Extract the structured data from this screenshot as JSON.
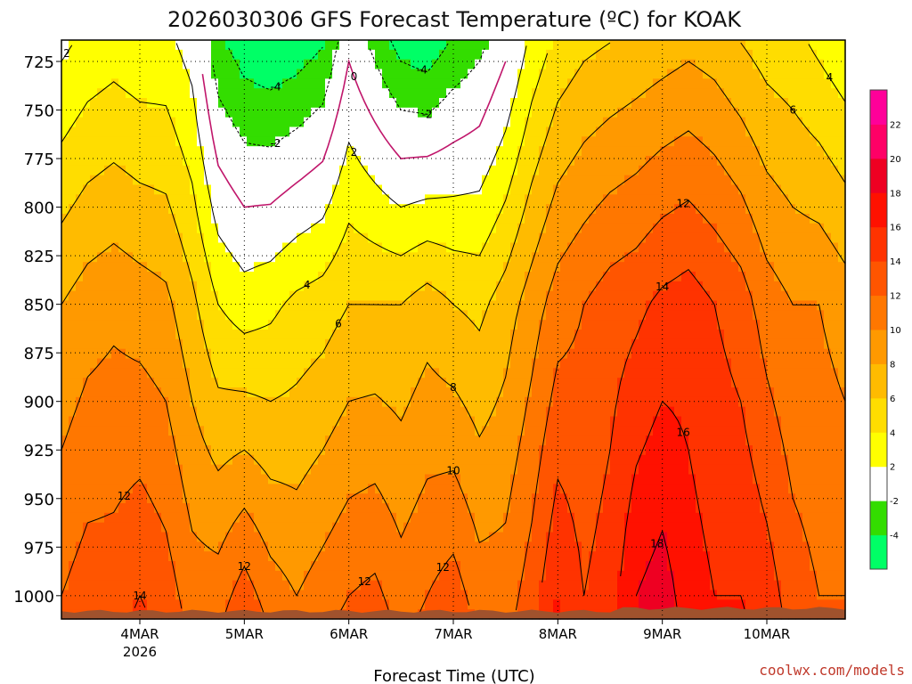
{
  "chart_data": {
    "type": "heatmap",
    "title": "2026030306 GFS Forecast Temperature (ºC) for KOAK",
    "xlabel": "Forecast Time (UTC)",
    "ylabel": "",
    "credit": "coolwx.com/models",
    "y_ticks": [
      725,
      750,
      775,
      800,
      825,
      850,
      875,
      900,
      925,
      950,
      975,
      1000
    ],
    "ylim": [
      1012,
      714
    ],
    "x_ticks": [
      {
        "day": 4,
        "label": "4MAR",
        "sublabel": "2026"
      },
      {
        "day": 5,
        "label": "5MAR",
        "sublabel": ""
      },
      {
        "day": 6,
        "label": "6MAR",
        "sublabel": ""
      },
      {
        "day": 7,
        "label": "7MAR",
        "sublabel": ""
      },
      {
        "day": 8,
        "label": "8MAR",
        "sublabel": ""
      },
      {
        "day": 9,
        "label": "9MAR",
        "sublabel": ""
      },
      {
        "day": 10,
        "label": "10MAR",
        "sublabel": ""
      }
    ],
    "xlim": [
      3.25,
      10.75
    ],
    "grid": true,
    "colorbar": {
      "levels": [
        -4,
        -2,
        2,
        4,
        6,
        8,
        10,
        12,
        14,
        16,
        18,
        20,
        22
      ],
      "colors": [
        "#00ff66",
        "#33dd00",
        "#ffffff",
        "#ffff00",
        "#ffdd00",
        "#ffbb00",
        "#ff9900",
        "#ff7700",
        "#ff5500",
        "#ff3300",
        "#ff1100",
        "#ee0022",
        "#ff0066",
        "#ff0099"
      ]
    },
    "series": [
      {
        "x": 3.25,
        "t725": 2,
        "t850": 8,
        "t1000": 12
      },
      {
        "x": 3.5,
        "t725": 3,
        "t850": 9,
        "t1000": 13
      },
      {
        "x": 3.75,
        "t725": 3.5,
        "t850": 9.5,
        "t1000": 13
      },
      {
        "x": 4.0,
        "t725": 3,
        "t850": 9,
        "t1000": 14
      },
      {
        "x": 4.25,
        "t725": 3,
        "t850": 8.5,
        "t1000": 13
      },
      {
        "x": 4.5,
        "t725": 1.5,
        "t850": 6.5,
        "t1000": 11
      },
      {
        "x": 4.75,
        "t725": -3,
        "t850": 4,
        "t1000": 11
      },
      {
        "x": 5.0,
        "t725": -4.5,
        "t850": 3,
        "t1000": 13
      },
      {
        "x": 5.25,
        "t725": -5,
        "t850": 3.5,
        "t1000": 11
      },
      {
        "x": 5.5,
        "t725": -4.5,
        "t850": 4.5,
        "t1000": 10
      },
      {
        "x": 5.75,
        "t725": -3.5,
        "t850": 5,
        "t1000": 11
      },
      {
        "x": 6.0,
        "t725": 0,
        "t850": 6,
        "t1000": 12
      },
      {
        "x": 6.25,
        "t725": -2,
        "t850": 6,
        "t1000": 12.5
      },
      {
        "x": 6.5,
        "t725": -4,
        "t850": 6,
        "t1000": 11
      },
      {
        "x": 6.75,
        "t725": -4.5,
        "t850": 7,
        "t1000": 12
      },
      {
        "x": 7.0,
        "t725": -3,
        "t850": 6,
        "t1000": 13
      },
      {
        "x": 7.25,
        "t725": -2,
        "t850": 5.5,
        "t1000": 11
      },
      {
        "x": 7.5,
        "t725": 0,
        "t850": 7,
        "t1000": 11
      },
      {
        "x": 7.75,
        "t725": 3,
        "t850": 9,
        "t1000": 13
      },
      {
        "x": 8.0,
        "t725": 5,
        "t850": 11,
        "t1000": 16
      },
      {
        "x": 8.25,
        "t725": 6,
        "t850": 12,
        "t1000": 14
      },
      {
        "x": 8.5,
        "t725": 6.5,
        "t850": 13,
        "t1000": 15
      },
      {
        "x": 8.75,
        "t725": 7,
        "t850": 13.5,
        "t1000": 18
      },
      {
        "x": 9.0,
        "t725": 7.5,
        "t850": 14.5,
        "t1000": 19
      },
      {
        "x": 9.25,
        "t725": 8,
        "t850": 15,
        "t1000": 17
      },
      {
        "x": 9.5,
        "t725": 7.5,
        "t850": 14,
        "t1000": 16
      },
      {
        "x": 9.75,
        "t725": 6.5,
        "t850": 13,
        "t1000": 16
      },
      {
        "x": 10.0,
        "t725": 5.5,
        "t850": 11,
        "t1000": 15
      },
      {
        "x": 10.25,
        "t725": 5,
        "t850": 10,
        "t1000": 13
      },
      {
        "x": 10.5,
        "t725": 4,
        "t850": 10,
        "t1000": 12
      },
      {
        "x": 10.75,
        "t725": 3,
        "t850": 9,
        "t1000": 12
      }
    ]
  }
}
